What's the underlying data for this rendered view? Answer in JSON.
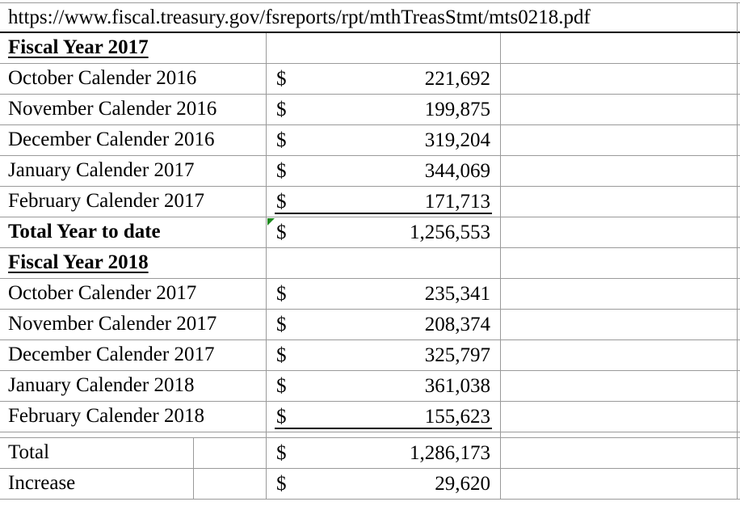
{
  "url": "https://www.fiscal.treasury.gov/fsreports/rpt/mthTreasStmt/mts0218.pdf",
  "fy2017": {
    "header": "Fiscal Year 2017",
    "rows": [
      {
        "label": "October Calender 2016",
        "currency": "$",
        "value": "221,692"
      },
      {
        "label": "November Calender 2016",
        "currency": "$",
        "value": "199,875"
      },
      {
        "label": "December Calender 2016",
        "currency": "$",
        "value": "319,204"
      },
      {
        "label": "January Calender 2017",
        "currency": "$",
        "value": "344,069"
      },
      {
        "label": "February Calender 2017",
        "currency": "$",
        "value": "171,713"
      }
    ],
    "total": {
      "label": "Total Year to date",
      "currency": "$",
      "value": "1,256,553"
    }
  },
  "fy2018": {
    "header": "Fiscal Year 2018",
    "rows": [
      {
        "label": "October Calender 2017",
        "currency": "$",
        "value": "235,341"
      },
      {
        "label": "November Calender 2017",
        "currency": "$",
        "value": "208,374"
      },
      {
        "label": "December Calender 2017",
        "currency": "$",
        "value": "325,797"
      },
      {
        "label": "January Calender 2018",
        "currency": "$",
        "value": "361,038"
      },
      {
        "label": "February Calender 2018",
        "currency": "$",
        "value": "155,623"
      }
    ]
  },
  "summary": {
    "total": {
      "label": "Total",
      "currency": "$",
      "value": "1,286,173"
    },
    "increase": {
      "label": "Increase",
      "currency": "$",
      "value": "29,620"
    }
  },
  "colors": {
    "gridline": "#9a9a9a",
    "flag_green": "#1f8a1f",
    "text": "#000000"
  }
}
